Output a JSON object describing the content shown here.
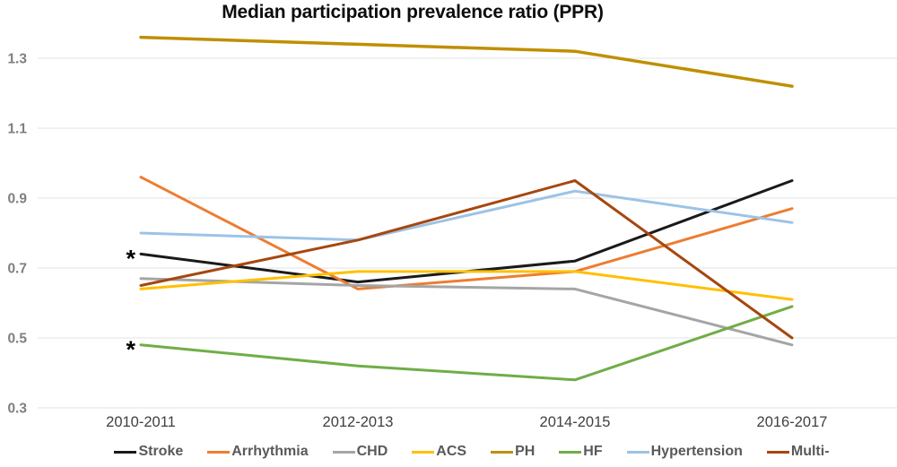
{
  "chart_data": {
    "type": "line",
    "title": "Median participation prevalence ratio (PPR)",
    "categories": [
      "2010-2011",
      "2012-2013",
      "2014-2015",
      "2016-2017"
    ],
    "series": [
      {
        "name": "Stroke",
        "color": "#1a1a1a",
        "values": [
          0.74,
          0.66,
          0.72,
          0.95
        ]
      },
      {
        "name": "Arrhythmia",
        "color": "#ED7D31",
        "values": [
          0.96,
          0.64,
          0.69,
          0.87
        ]
      },
      {
        "name": "CHD",
        "color": "#A5A5A5",
        "values": [
          0.67,
          0.65,
          0.64,
          0.48
        ]
      },
      {
        "name": "ACS",
        "color": "#FFC000",
        "values": [
          0.64,
          0.69,
          0.69,
          0.61
        ]
      },
      {
        "name": "PH",
        "color": "#BF8F00",
        "values": [
          1.36,
          1.34,
          1.32,
          1.22
        ]
      },
      {
        "name": "HF",
        "color": "#70AD47",
        "values": [
          0.48,
          0.42,
          0.38,
          0.59
        ]
      },
      {
        "name": "Hypertension",
        "color": "#9DC3E6",
        "values": [
          0.8,
          0.78,
          0.92,
          0.83
        ]
      },
      {
        "name": "Multi-",
        "color": "#A6470F",
        "values": [
          0.65,
          0.78,
          0.95,
          0.5
        ]
      }
    ],
    "ylim": [
      0.3,
      1.3
    ],
    "yticks": [
      1.3,
      1.1,
      0.9,
      0.7,
      0.5,
      0.3
    ],
    "xlabel": "",
    "ylabel": "",
    "grid": true,
    "legend_position": "bottom",
    "annotations": [
      {
        "text": "*",
        "series": "Stroke",
        "category_index": 0
      },
      {
        "text": "*",
        "series": "HF",
        "category_index": 0
      }
    ],
    "axis_colors": {
      "y_tick_label": "#7f7f7f",
      "x_tick_label": "#404040",
      "gridline": "#e3e3e3"
    }
  }
}
